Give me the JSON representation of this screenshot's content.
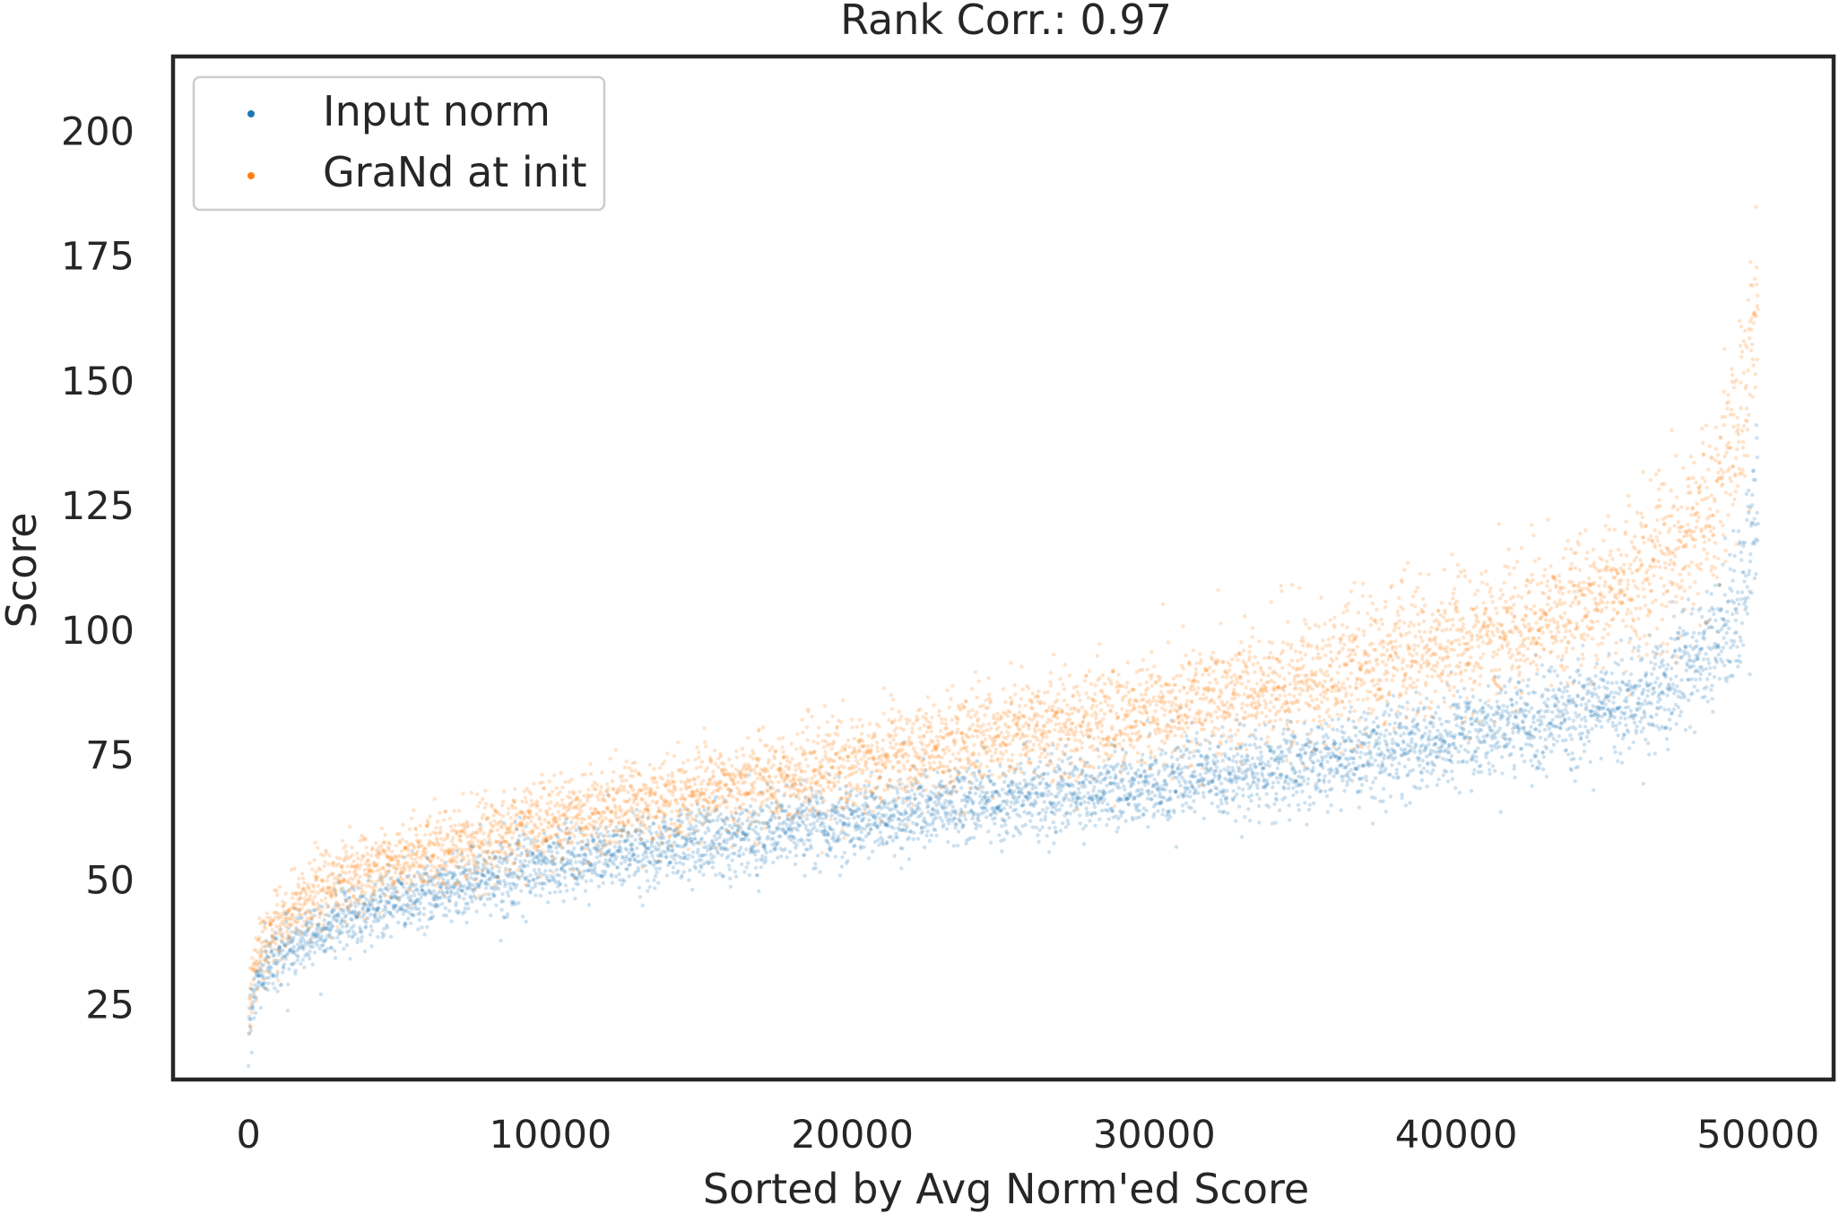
{
  "chart_data": {
    "type": "scatter",
    "title": "Rank Corr.: 0.97",
    "xlabel": "Sorted by Avg Norm'ed Score",
    "ylabel": "Score",
    "xlim": [
      -2500,
      52500
    ],
    "ylim": [
      10,
      215
    ],
    "xticks": [
      0,
      10000,
      20000,
      30000,
      40000,
      50000
    ],
    "xtick_labels": [
      "0",
      "10000",
      "20000",
      "30000",
      "40000",
      "50000"
    ],
    "yticks": [
      25,
      50,
      75,
      100,
      125,
      150,
      175,
      200
    ],
    "ytick_labels": [
      "25",
      "50",
      "75",
      "100",
      "125",
      "150",
      "175",
      "200"
    ],
    "grid": false,
    "legend_position": "top-left",
    "series": [
      {
        "name": "Input norm",
        "color": "#1f77b4",
        "n_points": 50000,
        "trend": {
          "x": [
            0,
            200,
            500,
            1000,
            2000,
            3000,
            5000,
            7500,
            10000,
            15000,
            20000,
            25000,
            30000,
            35000,
            40000,
            43000,
            45000,
            47000,
            48500,
            49300,
            49700,
            50000
          ],
          "y": [
            21,
            28,
            32,
            35,
            39,
            42,
            46,
            50,
            53,
            58,
            62,
            66,
            69,
            73,
            78,
            82,
            85,
            89,
            95,
            104,
            115,
            128
          ]
        },
        "spread": {
          "x": [
            0,
            10000,
            30000,
            45000,
            49000,
            50000
          ],
          "y": [
            3,
            3.5,
            4,
            5,
            7,
            9
          ]
        }
      },
      {
        "name": "GraNd at init",
        "color": "#ff7f0e",
        "n_points": 50000,
        "trend": {
          "x": [
            0,
            200,
            500,
            1000,
            2000,
            3000,
            5000,
            7500,
            10000,
            15000,
            20000,
            25000,
            30000,
            35000,
            40000,
            43000,
            45000,
            47000,
            48500,
            49300,
            49700,
            50000
          ],
          "y": [
            24,
            32,
            37,
            41,
            46,
            50,
            54,
            58,
            62,
            68,
            73,
            79,
            84,
            90,
            97,
            103,
            108,
            115,
            125,
            137,
            150,
            170
          ]
        },
        "spread": {
          "x": [
            0,
            10000,
            30000,
            45000,
            49000,
            50000
          ],
          "y": [
            3.5,
            4,
            5.5,
            7,
            10,
            13
          ]
        }
      }
    ]
  }
}
